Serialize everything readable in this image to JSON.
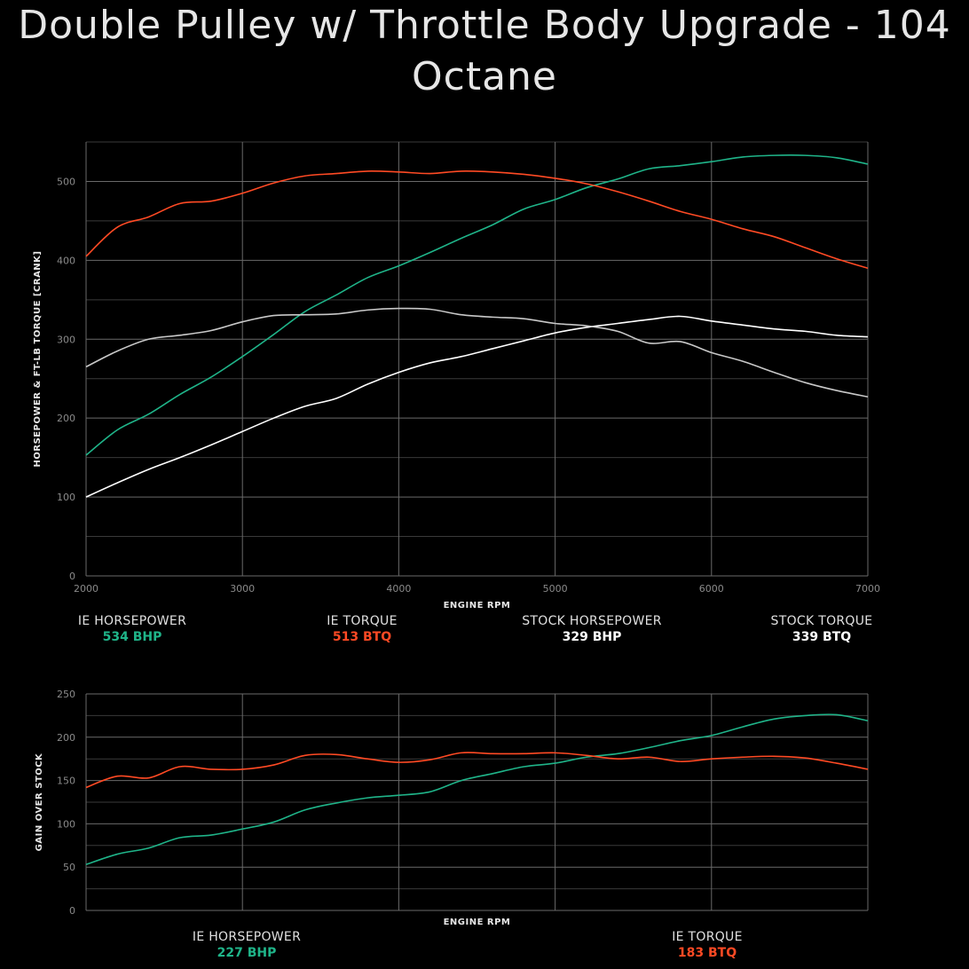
{
  "title": "Double Pulley w/ Throttle Body Upgrade - 104 Octane",
  "colors": {
    "ie_horsepower": "#1fb489",
    "ie_torque": "#ff4a24",
    "stock_horsepower": "#ffffff",
    "stock_torque": "#c8c8c8",
    "grid": "#5a5a5a"
  },
  "summary_top": [
    {
      "label": "IE HORSEPOWER",
      "value": "534 BHP",
      "color": "#1fb489"
    },
    {
      "label": "IE TORQUE",
      "value": "513 BTQ",
      "color": "#ff4a24"
    },
    {
      "label": "STOCK HORSEPOWER",
      "value": "329 BHP",
      "color": "#ffffff"
    },
    {
      "label": "STOCK TORQUE",
      "value": "339 BTQ",
      "color": "#ffffff"
    }
  ],
  "summary_bottom": [
    {
      "label": "IE HORSEPOWER",
      "value": "227 BHP",
      "color": "#1fb489"
    },
    {
      "label": "IE TORQUE",
      "value": "183 BTQ",
      "color": "#ff4a24"
    }
  ],
  "chart_data": [
    {
      "type": "line",
      "xlabel": "ENGINE RPM",
      "ylabel": "HORSEPOWER & FT-LB TORQUE [CRANK]",
      "xlim": [
        2000,
        7000
      ],
      "ylim": [
        0,
        550
      ],
      "xticks": [
        2000,
        3000,
        4000,
        5000,
        6000,
        7000
      ],
      "yticks": [
        0,
        100,
        200,
        300,
        400,
        500
      ],
      "grid": true,
      "x": [
        2000,
        2200,
        2400,
        2600,
        2800,
        3000,
        3200,
        3400,
        3600,
        3800,
        4000,
        4200,
        4400,
        4600,
        4800,
        5000,
        5200,
        5400,
        5600,
        5800,
        6000,
        6200,
        6400,
        6600,
        6800,
        7000
      ],
      "series": [
        {
          "name": "IE HORSEPOWER",
          "color": "#1fb489",
          "values": [
            153,
            185,
            205,
            230,
            252,
            278,
            306,
            335,
            356,
            378,
            393,
            410,
            428,
            445,
            465,
            477,
            492,
            503,
            516,
            520,
            525,
            531,
            533,
            533,
            530,
            522
          ]
        },
        {
          "name": "IE TORQUE",
          "color": "#ff4a24",
          "values": [
            405,
            442,
            455,
            472,
            475,
            485,
            498,
            507,
            510,
            513,
            512,
            510,
            513,
            512,
            509,
            504,
            497,
            487,
            475,
            462,
            452,
            440,
            430,
            416,
            402,
            390
          ]
        },
        {
          "name": "STOCK HORSEPOWER",
          "color": "#ffffff",
          "values": [
            100,
            118,
            135,
            150,
            166,
            183,
            200,
            215,
            225,
            243,
            258,
            270,
            278,
            288,
            298,
            308,
            315,
            320,
            325,
            329,
            323,
            318,
            313,
            310,
            305,
            303
          ]
        },
        {
          "name": "STOCK TORQUE",
          "color": "#c8c8c8",
          "values": [
            265,
            285,
            300,
            305,
            311,
            322,
            330,
            331,
            332,
            337,
            339,
            338,
            331,
            328,
            326,
            320,
            317,
            310,
            295,
            297,
            283,
            272,
            258,
            245,
            235,
            227
          ]
        }
      ]
    },
    {
      "type": "line",
      "xlabel": "ENGINE RPM",
      "ylabel": "GAIN OVER STOCK",
      "xlim": [
        2000,
        7000
      ],
      "ylim": [
        0,
        250
      ],
      "yticks": [
        0,
        50,
        100,
        150,
        200,
        250
      ],
      "grid": true,
      "x": [
        2000,
        2200,
        2400,
        2600,
        2800,
        3000,
        3200,
        3400,
        3600,
        3800,
        4000,
        4200,
        4400,
        4600,
        4800,
        5000,
        5200,
        5400,
        5600,
        5800,
        6000,
        6200,
        6400,
        6600,
        6800,
        7000
      ],
      "series": [
        {
          "name": "IE HORSEPOWER",
          "color": "#1fb489",
          "values": [
            53,
            65,
            72,
            84,
            87,
            94,
            102,
            116,
            124,
            130,
            133,
            137,
            150,
            158,
            166,
            170,
            177,
            181,
            188,
            196,
            202,
            212,
            221,
            225,
            226,
            219
          ]
        },
        {
          "name": "IE TORQUE",
          "color": "#ff4a24",
          "values": [
            142,
            155,
            153,
            166,
            163,
            163,
            168,
            179,
            180,
            175,
            171,
            174,
            182,
            181,
            181,
            182,
            179,
            175,
            177,
            172,
            175,
            177,
            178,
            176,
            170,
            163
          ]
        }
      ]
    }
  ]
}
